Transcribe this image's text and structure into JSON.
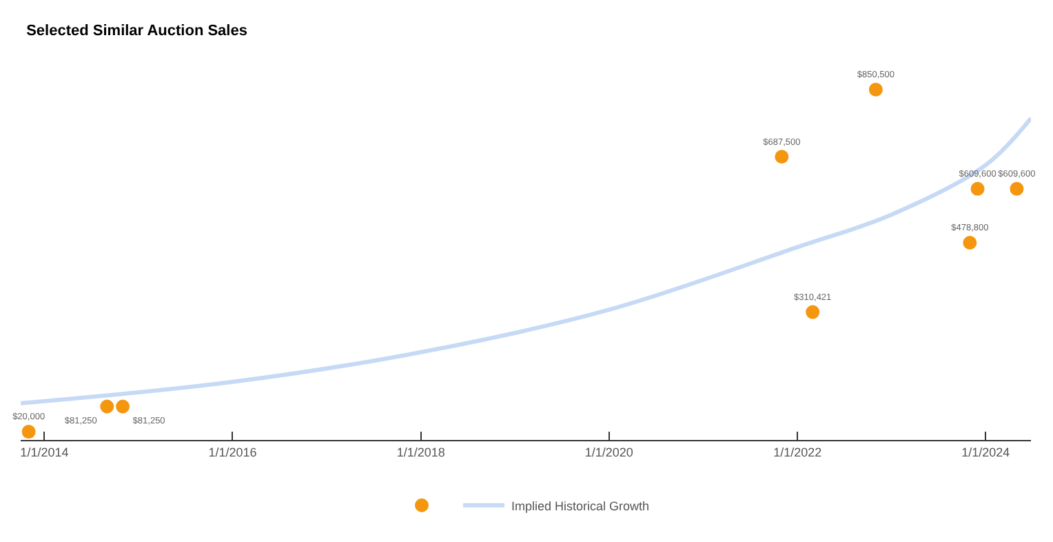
{
  "chart_data": {
    "type": "scatter",
    "title": "Selected Similar Auction Sales",
    "xlim": [
      "2013-10-01",
      "2024-06-25"
    ],
    "xticks": [
      {
        "value": "2014-01-01",
        "label": "1/1/2014"
      },
      {
        "value": "2016-01-01",
        "label": "1/1/2016"
      },
      {
        "value": "2018-01-01",
        "label": "1/1/2018"
      },
      {
        "value": "2020-01-01",
        "label": "1/1/2020"
      },
      {
        "value": "2022-01-01",
        "label": "1/1/2022"
      },
      {
        "value": "2024-01-01",
        "label": "1/1/2024"
      }
    ],
    "series": [
      {
        "type": "scatter",
        "color": "#f4970f",
        "marker": "circle",
        "x": [
          "2013-11",
          "2014-09",
          "2014-11",
          "2021-11",
          "2022-03",
          "2022-11",
          "2023-11",
          "2023-12",
          "2024-05"
        ],
        "values": [
          20000,
          81250,
          81250,
          687500,
          310421,
          850500,
          478800,
          609600,
          609600
        ],
        "value_labels": [
          "$20,000",
          "$81,250",
          "$81,250",
          "$687,500",
          "$310,421",
          "$850,500",
          "$478,800",
          "$609,600",
          "$609,600"
        ]
      },
      {
        "type": "line",
        "name": "Implied Historical Growth",
        "color": "#c6d9f5",
        "marker": "none",
        "line_style": "solid",
        "x": [
          "2013-10-01",
          "2016-01-01",
          "2018-01-01",
          "2020-01-01",
          "2022-01-01",
          "2023-01-01",
          "2024-01-01",
          "2024-06-25"
        ],
        "values": [
          89000,
          141000,
          213000,
          316000,
          468000,
          547000,
          667000,
          781000
        ]
      }
    ],
    "grid": false,
    "legend": "bottom",
    "tick_labels": "x"
  }
}
